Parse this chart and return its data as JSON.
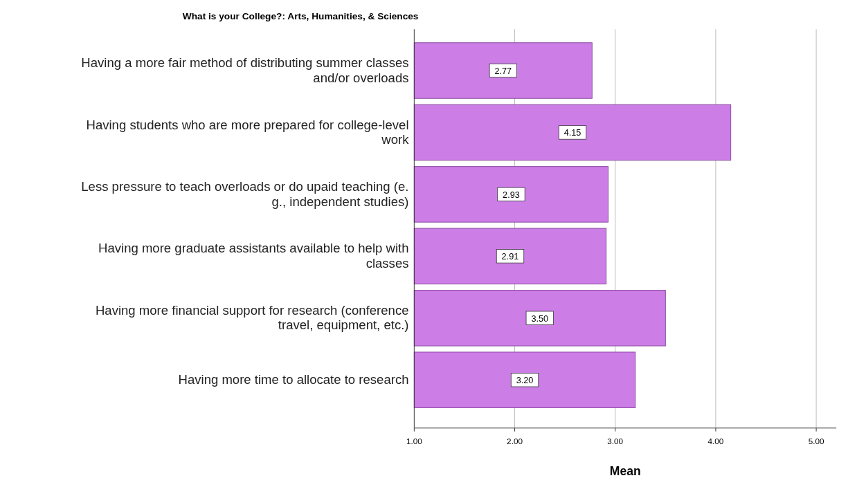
{
  "chart_data": {
    "type": "bar",
    "orientation": "horizontal",
    "title": "What is your College?: Arts, Humanities, & Sciences",
    "xlabel": "Mean",
    "categories": [
      "Having a more fair method of distributing summer classes and/or overloads",
      "Having students who are more prepared for college-level work",
      "Less pressure to teach overloads or do upaid teaching (e.g., independent studies)",
      "Having more graduate assistants available to help with classes",
      "Having more financial support for research (conference travel, equipment, etc.)",
      "Having more time to allocate to research"
    ],
    "values": [
      2.77,
      4.15,
      2.93,
      2.91,
      3.5,
      3.2
    ],
    "value_labels": [
      "2.77",
      "4.15",
      "2.93",
      "2.91",
      "3.50",
      "3.20"
    ],
    "color": "#cc7de6",
    "xlim": [
      1,
      5.2
    ],
    "xticks": [
      {
        "value": 1,
        "label": "1.00"
      },
      {
        "value": 2,
        "label": "2.00"
      },
      {
        "value": 3,
        "label": "3.00"
      },
      {
        "value": 4,
        "label": "4.00"
      },
      {
        "value": 5,
        "label": "5.00"
      }
    ],
    "grid": "x"
  }
}
